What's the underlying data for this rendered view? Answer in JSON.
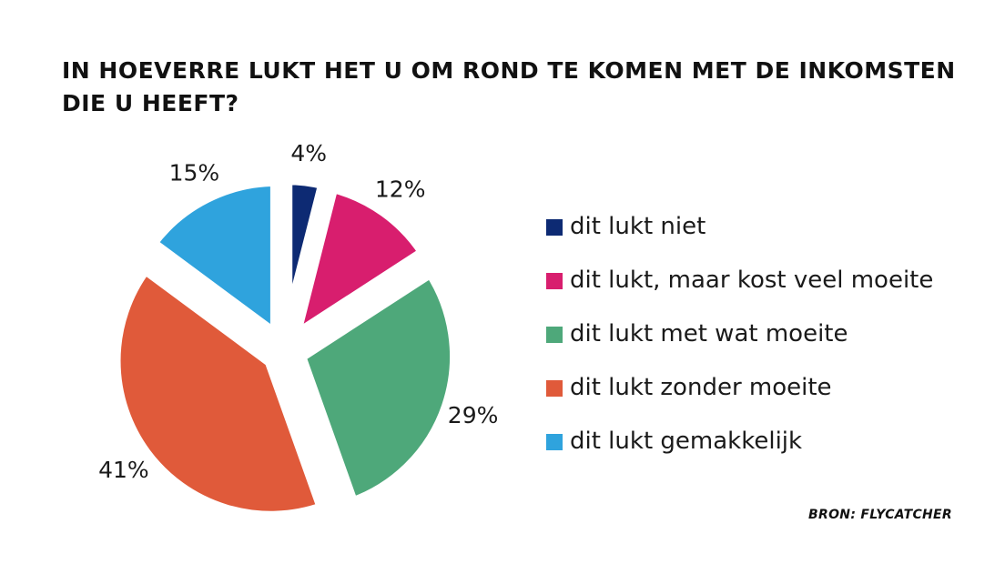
{
  "title": "IN HOEVERRE LUKT HET U OM ROND TE KOMEN MET DE INKOMSTEN DIE U HEEFT?",
  "source": "BRON: FLYCATCHER",
  "chart_data": {
    "type": "pie",
    "title": "IN HOEVERRE LUKT HET U OM ROND TE KOMEN MET DE INKOMSTEN DIE U HEEFT?",
    "categories": [
      "dit lukt niet",
      "dit lukt, maar kost veel moeite",
      "dit lukt met wat moeite",
      "dit lukt zonder moeite",
      "dit lukt gemakkelijk"
    ],
    "values": [
      4,
      12,
      29,
      41,
      15
    ],
    "labels": [
      "4%",
      "12%",
      "29%",
      "41%",
      "15%"
    ],
    "colors": [
      "#0d2a73",
      "#d81e6e",
      "#4ea87a",
      "#e05a3a",
      "#2fa3dd"
    ],
    "exploded": true,
    "legend": "right"
  }
}
